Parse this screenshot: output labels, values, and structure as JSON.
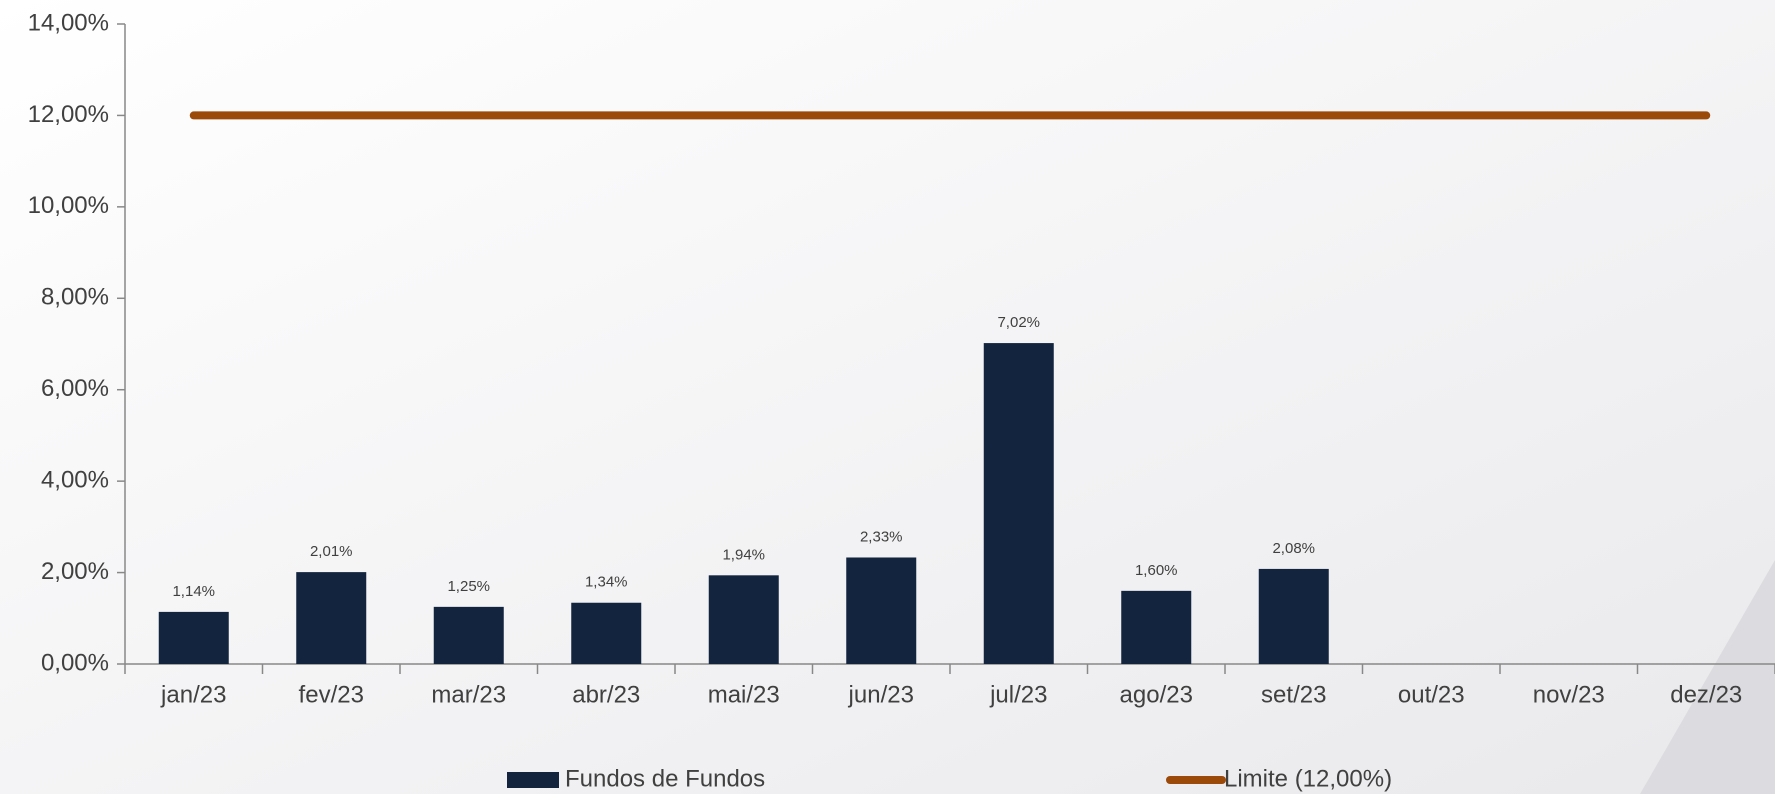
{
  "chart_data": {
    "type": "bar",
    "categories": [
      "jan/23",
      "fev/23",
      "mar/23",
      "abr/23",
      "mai/23",
      "jun/23",
      "jul/23",
      "ago/23",
      "set/23",
      "out/23",
      "nov/23",
      "dez/23"
    ],
    "series": [
      {
        "name": "Fundos de Fundos",
        "type": "bar",
        "color": "#13243f",
        "values": [
          1.14,
          2.01,
          1.25,
          1.34,
          1.94,
          2.33,
          7.02,
          1.6,
          2.08,
          null,
          null,
          null
        ],
        "value_labels": [
          "1,14%",
          "2,01%",
          "1,25%",
          "1,34%",
          "1,94%",
          "2,33%",
          "7,02%",
          "1,60%",
          "2,08%",
          null,
          null,
          null
        ]
      },
      {
        "name": "Limite (12,00%)",
        "type": "line",
        "color": "#9c4a0a",
        "values": [
          12,
          12,
          12,
          12,
          12,
          12,
          12,
          12,
          12,
          12,
          12,
          12
        ]
      }
    ],
    "ylim": [
      0,
      14
    ],
    "yticks": [
      {
        "value": 0,
        "label": "0,00%"
      },
      {
        "value": 2,
        "label": "2,00%"
      },
      {
        "value": 4,
        "label": "4,00%"
      },
      {
        "value": 6,
        "label": "6,00%"
      },
      {
        "value": 8,
        "label": "8,00%"
      },
      {
        "value": 10,
        "label": "10,00%"
      },
      {
        "value": 12,
        "label": "12,00%"
      },
      {
        "value": 14,
        "label": "14,00%"
      }
    ],
    "grid": false,
    "legend": "bottom"
  }
}
